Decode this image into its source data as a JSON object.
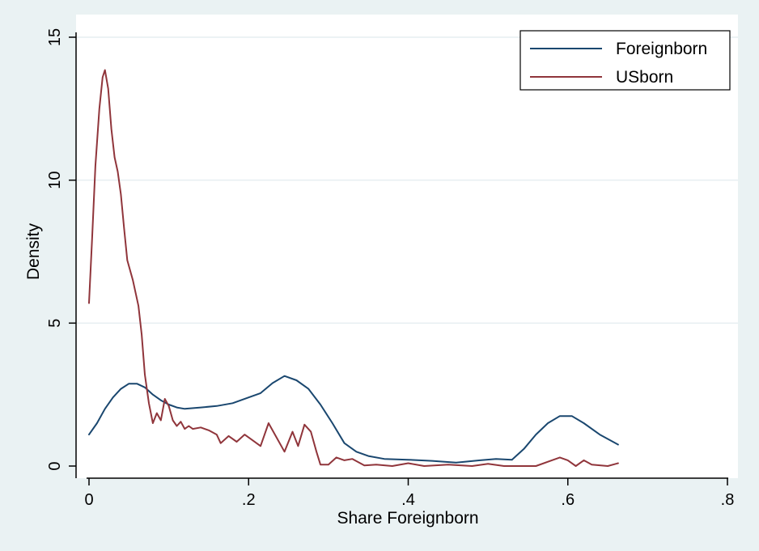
{
  "chart_data": {
    "type": "line",
    "title": "",
    "xlabel": "Share Foreignborn",
    "ylabel": "Density",
    "xlim": [
      0,
      0.8
    ],
    "ylim": [
      0,
      15
    ],
    "x_ticks": [
      {
        "value": 0,
        "label": "0"
      },
      {
        "value": 0.2,
        "label": ".2"
      },
      {
        "value": 0.4,
        "label": ".4"
      },
      {
        "value": 0.6,
        "label": ".6"
      },
      {
        "value": 0.8,
        "label": ".8"
      }
    ],
    "y_ticks": [
      {
        "value": 0,
        "label": "0"
      },
      {
        "value": 5,
        "label": "5"
      },
      {
        "value": 10,
        "label": "10"
      },
      {
        "value": 15,
        "label": "15"
      }
    ],
    "grid": "horizontal",
    "legend_position": "top-right",
    "series": [
      {
        "name": "Foreignborn",
        "color": "#1a476f",
        "points": [
          [
            0.0,
            1.1
          ],
          [
            0.01,
            1.5
          ],
          [
            0.02,
            2.0
          ],
          [
            0.03,
            2.4
          ],
          [
            0.04,
            2.7
          ],
          [
            0.05,
            2.88
          ],
          [
            0.06,
            2.88
          ],
          [
            0.07,
            2.75
          ],
          [
            0.08,
            2.5
          ],
          [
            0.09,
            2.3
          ],
          [
            0.1,
            2.15
          ],
          [
            0.11,
            2.05
          ],
          [
            0.12,
            2.0
          ],
          [
            0.14,
            2.05
          ],
          [
            0.16,
            2.1
          ],
          [
            0.18,
            2.2
          ],
          [
            0.2,
            2.4
          ],
          [
            0.215,
            2.55
          ],
          [
            0.23,
            2.9
          ],
          [
            0.245,
            3.15
          ],
          [
            0.26,
            3.0
          ],
          [
            0.275,
            2.7
          ],
          [
            0.29,
            2.15
          ],
          [
            0.305,
            1.5
          ],
          [
            0.32,
            0.8
          ],
          [
            0.335,
            0.5
          ],
          [
            0.35,
            0.35
          ],
          [
            0.37,
            0.25
          ],
          [
            0.4,
            0.22
          ],
          [
            0.43,
            0.18
          ],
          [
            0.46,
            0.12
          ],
          [
            0.49,
            0.2
          ],
          [
            0.51,
            0.25
          ],
          [
            0.53,
            0.22
          ],
          [
            0.545,
            0.6
          ],
          [
            0.56,
            1.1
          ],
          [
            0.575,
            1.5
          ],
          [
            0.59,
            1.75
          ],
          [
            0.605,
            1.75
          ],
          [
            0.62,
            1.5
          ],
          [
            0.64,
            1.1
          ],
          [
            0.663,
            0.75
          ]
        ]
      },
      {
        "name": "USborn",
        "color": "#90353b",
        "points": [
          [
            0.0,
            5.7
          ],
          [
            0.004,
            8.0
          ],
          [
            0.008,
            10.5
          ],
          [
            0.013,
            12.5
          ],
          [
            0.017,
            13.6
          ],
          [
            0.02,
            13.85
          ],
          [
            0.024,
            13.2
          ],
          [
            0.028,
            11.8
          ],
          [
            0.032,
            10.8
          ],
          [
            0.036,
            10.3
          ],
          [
            0.04,
            9.5
          ],
          [
            0.044,
            8.3
          ],
          [
            0.048,
            7.2
          ],
          [
            0.055,
            6.5
          ],
          [
            0.062,
            5.6
          ],
          [
            0.066,
            4.6
          ],
          [
            0.07,
            3.2
          ],
          [
            0.075,
            2.2
          ],
          [
            0.08,
            1.5
          ],
          [
            0.085,
            1.85
          ],
          [
            0.09,
            1.6
          ],
          [
            0.095,
            2.35
          ],
          [
            0.1,
            2.1
          ],
          [
            0.105,
            1.6
          ],
          [
            0.11,
            1.4
          ],
          [
            0.115,
            1.55
          ],
          [
            0.12,
            1.3
          ],
          [
            0.125,
            1.4
          ],
          [
            0.13,
            1.3
          ],
          [
            0.14,
            1.35
          ],
          [
            0.15,
            1.25
          ],
          [
            0.16,
            1.1
          ],
          [
            0.165,
            0.8
          ],
          [
            0.175,
            1.05
          ],
          [
            0.185,
            0.85
          ],
          [
            0.195,
            1.1
          ],
          [
            0.205,
            0.9
          ],
          [
            0.215,
            0.7
          ],
          [
            0.225,
            1.5
          ],
          [
            0.235,
            1.0
          ],
          [
            0.245,
            0.5
          ],
          [
            0.255,
            1.2
          ],
          [
            0.262,
            0.7
          ],
          [
            0.27,
            1.45
          ],
          [
            0.278,
            1.2
          ],
          [
            0.285,
            0.5
          ],
          [
            0.29,
            0.05
          ],
          [
            0.3,
            0.05
          ],
          [
            0.31,
            0.3
          ],
          [
            0.32,
            0.2
          ],
          [
            0.33,
            0.25
          ],
          [
            0.345,
            0.02
          ],
          [
            0.36,
            0.05
          ],
          [
            0.38,
            0.0
          ],
          [
            0.4,
            0.1
          ],
          [
            0.42,
            0.0
          ],
          [
            0.45,
            0.05
          ],
          [
            0.48,
            0.0
          ],
          [
            0.5,
            0.08
          ],
          [
            0.52,
            0.0
          ],
          [
            0.56,
            0.0
          ],
          [
            0.58,
            0.2
          ],
          [
            0.59,
            0.3
          ],
          [
            0.6,
            0.2
          ],
          [
            0.61,
            0.0
          ],
          [
            0.62,
            0.2
          ],
          [
            0.63,
            0.05
          ],
          [
            0.65,
            0.0
          ],
          [
            0.663,
            0.1
          ]
        ]
      }
    ]
  },
  "colors": {
    "background": "#eaf2f3",
    "plot_area": "#ffffff",
    "gridline": "#e6eef1"
  }
}
